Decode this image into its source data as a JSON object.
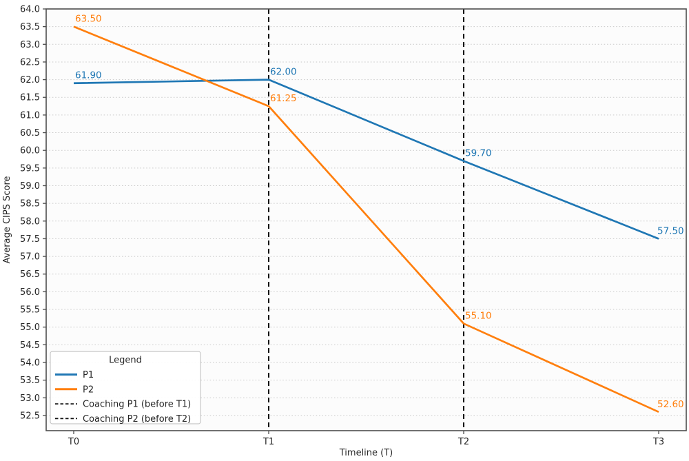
{
  "chart_data": {
    "type": "line",
    "title": "",
    "xlabel": "Timeline (T)",
    "ylabel": "Average CIPS Score",
    "categories": [
      "T0",
      "T1",
      "T2",
      "T3"
    ],
    "series": [
      {
        "name": "P1",
        "color": "#1f77b4",
        "values": [
          61.9,
          62.0,
          59.7,
          57.5
        ],
        "point_labels": [
          "61.90",
          "62.00",
          "59.70",
          "57.50"
        ]
      },
      {
        "name": "P2",
        "color": "#ff7f0e",
        "values": [
          63.5,
          61.25,
          55.1,
          52.6
        ],
        "point_labels": [
          "63.50",
          "61.25",
          "55.10",
          "52.60"
        ]
      }
    ],
    "vlines": [
      {
        "at": "T1",
        "style": "dashed",
        "color": "#111111",
        "label": "Coaching P1 (before T1)"
      },
      {
        "at": "T2",
        "style": "dashed",
        "color": "#111111",
        "label": "Coaching P2 (before T2)"
      }
    ],
    "ylim": [
      52.07,
      64.0
    ],
    "yticks": {
      "start": 52.5,
      "end": 64.0,
      "step": 0.5
    },
    "grid": {
      "horizontal": true,
      "vertical": false,
      "style": "dotted",
      "color": "#c9c9c9"
    },
    "axis_color": "#4d4d4d",
    "tick_label_color": "#262626",
    "legend": {
      "title": "Legend",
      "position": "lower-left",
      "entries": [
        {
          "label": "P1",
          "swatch": "solid",
          "color": "#1f77b4"
        },
        {
          "label": "P2",
          "swatch": "solid",
          "color": "#ff7f0e"
        },
        {
          "label": "Coaching P1 (before T1)",
          "swatch": "dashed",
          "color": "#111111"
        },
        {
          "label": "Coaching P2 (before T2)",
          "swatch": "dashed",
          "color": "#111111"
        }
      ]
    }
  }
}
